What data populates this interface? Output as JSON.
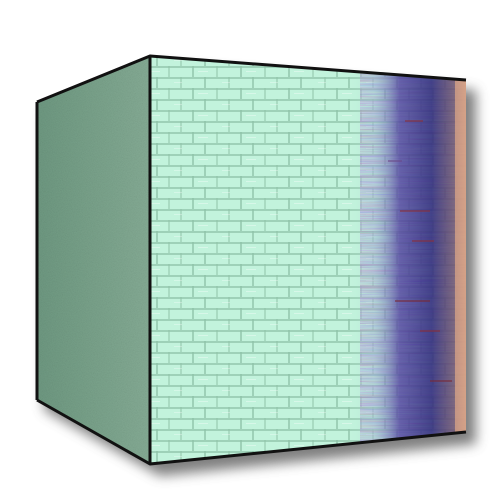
{
  "image": {
    "subject": "cube",
    "faces": {
      "left": {
        "texture": "fine-grain",
        "color": "#7fa68e",
        "shade_color": "#5f8a72"
      },
      "front": {
        "texture": "brick",
        "base_color": "#bff2d8",
        "mortar_color": "#8fc4a8",
        "gradient_colors": [
          "#bff2d8",
          "#b8e6d2",
          "#4a3f9a",
          "#2e2a7a",
          "#6b4f6a",
          "#d9a080"
        ]
      }
    },
    "edge_color": "#111111",
    "shadow_color": "#5a5a5a",
    "background": "#ffffff"
  }
}
